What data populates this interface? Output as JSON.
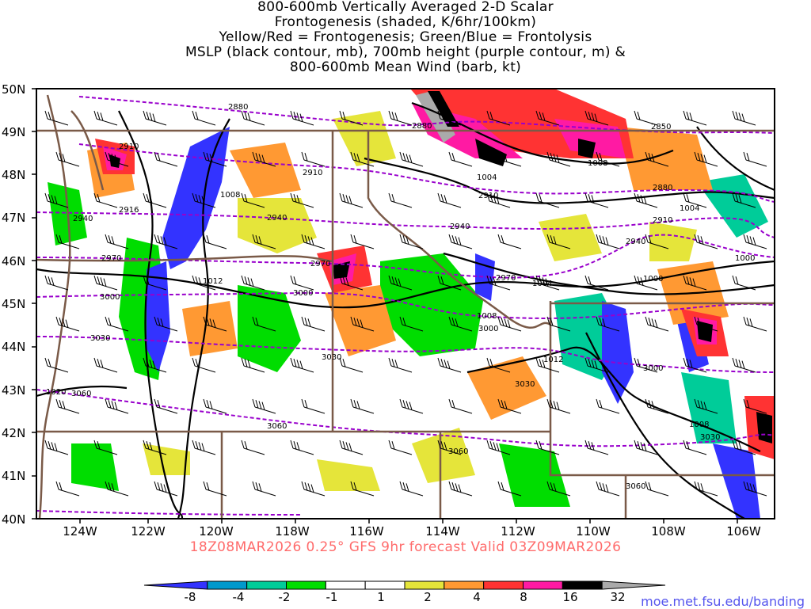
{
  "title": {
    "lines": [
      "800-600mb Vertically Averaged 2-D Scalar",
      "Frontogenesis (shaded, K/6hr/100km)",
      "Yellow/Red = Frontogenesis;  Green/Blue = Frontolysis",
      "MSLP (black contour, mb), 700mb height (purple contour, m) &",
      "800-600mb Mean Wind (barb, kt)"
    ]
  },
  "axes": {
    "lat_labels": [
      "50N",
      "49N",
      "48N",
      "47N",
      "46N",
      "45N",
      "44N",
      "43N",
      "42N",
      "41N",
      "40N"
    ],
    "lon_labels": [
      "124W",
      "122W",
      "120W",
      "118W",
      "116W",
      "114W",
      "112W",
      "110W",
      "108W",
      "106W"
    ]
  },
  "map_extent": {
    "lon_range": [
      -125.0,
      -105.0
    ],
    "lat_range": [
      40,
      50
    ]
  },
  "contours": {
    "height_labels": [
      "2880",
      "2880",
      "2850",
      "2910",
      "2910",
      "2910",
      "2880",
      "2940",
      "2940",
      "2940",
      "2910",
      "2970",
      "2970",
      "2940",
      "3000",
      "3000",
      "2970",
      "3000",
      "3030",
      "3030",
      "3030",
      "3060",
      "3060",
      "3060",
      "3000",
      "3030",
      "3060",
      "2916"
    ],
    "mslp_labels": [
      "1008",
      "1004",
      "1008",
      "1004",
      "1012",
      "1004",
      "1008",
      "1000",
      "1000",
      "1012",
      "1020",
      "1008"
    ]
  },
  "colors": {
    "frontogenesis_colorbar": [
      "#3333ff",
      "#0099cc",
      "#00cc99",
      "#00dd00",
      "#ffffff",
      "#ffffff",
      "#e5e53a",
      "#ff9933",
      "#ff3333",
      "#ff1aa3",
      "#000000",
      "#aaaaaa"
    ],
    "height_contour": "#9900cc",
    "mslp_contour": "#000000",
    "state_border": "#7a5a48"
  },
  "colorbar": {
    "tick_labels": [
      "-8",
      "-4",
      "-2",
      "-1",
      "1",
      "2",
      "4",
      "8",
      "16",
      "32"
    ]
  },
  "footer": {
    "forecast": "18Z08MAR2026 0.25° GFS 9hr forecast Valid 03Z09MAR2026",
    "credit": "moe.met.fsu.edu/banding"
  }
}
